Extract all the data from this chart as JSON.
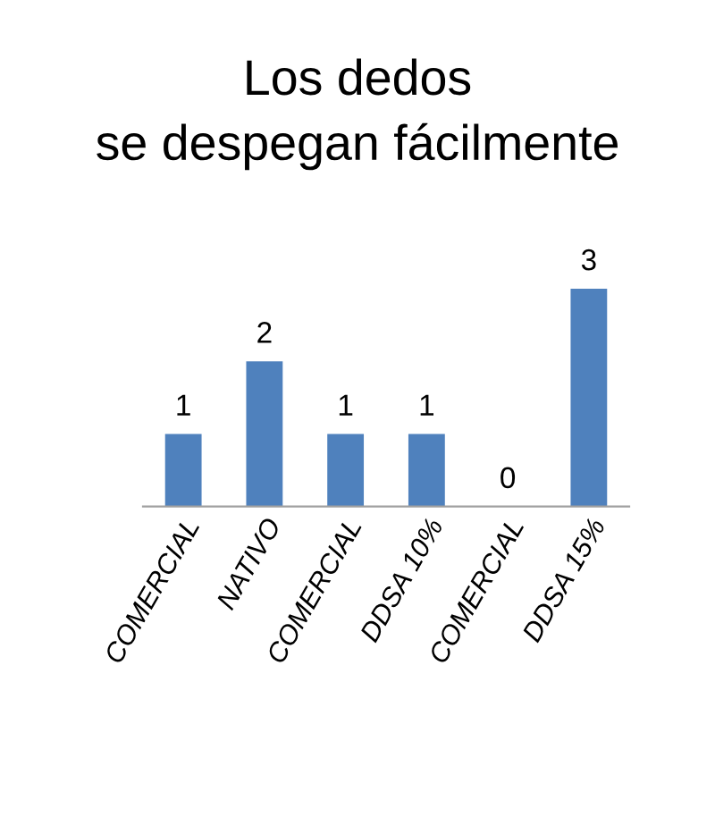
{
  "chart_data": {
    "type": "bar",
    "title": "Los dedos\nse despegan fácilmente",
    "categories": [
      "COMERCIAL",
      "NATIVO",
      "COMERCIAL",
      "DDSA 10%",
      "COMERCIAL",
      "DDSA 15%"
    ],
    "values": [
      1,
      2,
      1,
      1,
      0,
      3
    ],
    "color": "#4f81bd",
    "data_labels": true,
    "grid": false,
    "legend": false
  }
}
